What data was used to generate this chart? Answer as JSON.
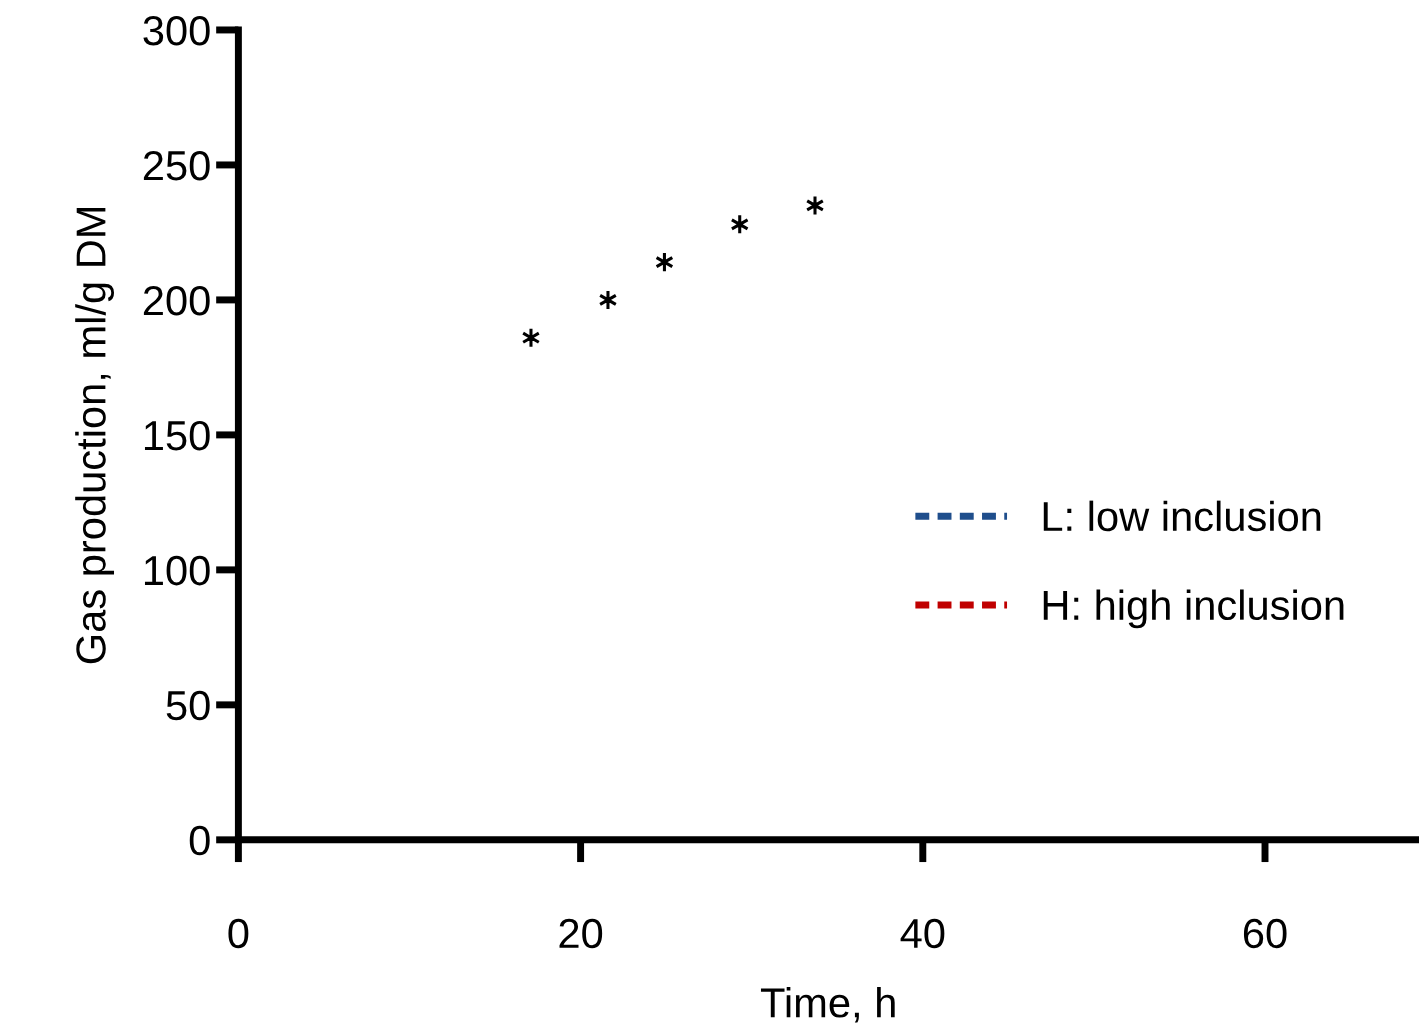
{
  "chart_data": {
    "type": "line",
    "xlabel": "Time, h",
    "ylabel": "Gas production, ml/g DM",
    "series": [
      {
        "name": "L: low inclusion",
        "color": "#1f4e8c"
      },
      {
        "name": "H: high inclusion",
        "color": "#c00000"
      },
      {
        "type": "scatter",
        "color": "#000000",
        "marker": "cross",
        "x": [
          17.1,
          21.6,
          24.9,
          29.3,
          33.7
        ],
        "values": [
          186,
          200,
          214,
          228,
          235
        ]
      }
    ],
    "line_style": "dashed",
    "marker": "none",
    "grid": false,
    "xlim": [
      0,
      69
    ],
    "ylim": [
      0,
      300
    ],
    "xticks": [
      0,
      20,
      40,
      60
    ],
    "yticks": [
      0,
      50,
      100,
      150,
      200,
      250,
      300
    ],
    "legend": "right"
  }
}
